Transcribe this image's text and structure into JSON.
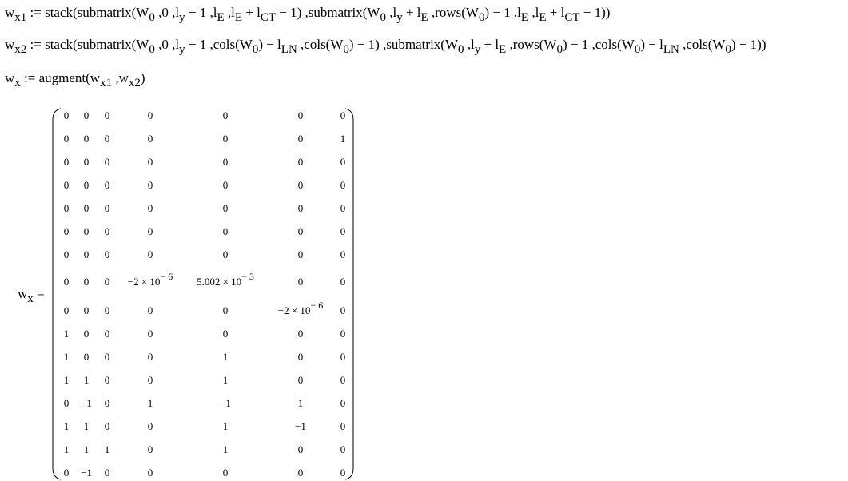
{
  "equations": [
    [
      "w",
      {
        "sub": "x1"
      },
      " := stack(submatrix(W",
      {
        "sub": "0"
      },
      " ,0 ,l",
      {
        "sub": "y"
      },
      " − 1 ,l",
      {
        "sub": "E"
      },
      " ,l",
      {
        "sub": "E"
      },
      " + l",
      {
        "sub": "CT"
      },
      " − 1) ,submatrix(W",
      {
        "sub": "0"
      },
      " ,l",
      {
        "sub": "y"
      },
      " + l",
      {
        "sub": "E"
      },
      " ,rows(W",
      {
        "sub": "0"
      },
      ") − 1 ,l",
      {
        "sub": "E"
      },
      " ,l",
      {
        "sub": "E"
      },
      " + l",
      {
        "sub": "CT"
      },
      " − 1))"
    ],
    [
      "w",
      {
        "sub": "x2"
      },
      " := stack(submatrix(W",
      {
        "sub": "0"
      },
      " ,0 ,l",
      {
        "sub": "y"
      },
      " − 1 ,cols(W",
      {
        "sub": "0"
      },
      ") − l",
      {
        "sub": "LN"
      },
      " ,cols(W",
      {
        "sub": "0"
      },
      ") − 1) ,submatrix(W",
      {
        "sub": "0"
      },
      " ,l",
      {
        "sub": "y"
      },
      " + l",
      {
        "sub": "E"
      },
      " ,rows(W",
      {
        "sub": "0"
      },
      ") − 1 ,cols(W",
      {
        "sub": "0"
      },
      ") − l",
      {
        "sub": "LN"
      },
      " ,cols(W",
      {
        "sub": "0"
      },
      ") − 1))"
    ],
    [
      "w",
      {
        "sub": "x"
      },
      " := augment(w",
      {
        "sub": "x1"
      },
      " ,w",
      {
        "sub": "x2"
      },
      ")"
    ]
  ],
  "matrix_label": [
    "w",
    {
      "sub": "x"
    },
    " ="
  ],
  "matrix": [
    [
      "0",
      "0",
      "0",
      "0",
      "0",
      "0",
      "0"
    ],
    [
      "0",
      "0",
      "0",
      "0",
      "0",
      "0",
      "1"
    ],
    [
      "0",
      "0",
      "0",
      "0",
      "0",
      "0",
      "0"
    ],
    [
      "0",
      "0",
      "0",
      "0",
      "0",
      "0",
      "0"
    ],
    [
      "0",
      "0",
      "0",
      "0",
      "0",
      "0",
      "0"
    ],
    [
      "0",
      "0",
      "0",
      "0",
      "0",
      "0",
      "0"
    ],
    [
      "0",
      "0",
      "0",
      "0",
      "0",
      "0",
      "0"
    ],
    [
      "0",
      "0",
      "0",
      {
        "base": "−2 × 10",
        "sup": "− 6"
      },
      {
        "base": "5.002 × 10",
        "sup": "− 3"
      },
      "0",
      "0"
    ],
    [
      "0",
      "0",
      "0",
      "0",
      "0",
      {
        "base": "−2 × 10",
        "sup": "− 6"
      },
      "0"
    ],
    [
      "1",
      "0",
      "0",
      "0",
      "0",
      "0",
      "0"
    ],
    [
      "1",
      "0",
      "0",
      "0",
      "1",
      "0",
      "0"
    ],
    [
      "1",
      "1",
      "0",
      "0",
      "1",
      "0",
      "0"
    ],
    [
      "0",
      "−1",
      "0",
      "1",
      "−1",
      "1",
      "0"
    ],
    [
      "1",
      "1",
      "0",
      "0",
      "1",
      "−1",
      "0"
    ],
    [
      "1",
      "1",
      "1",
      "0",
      "1",
      "0",
      "0"
    ],
    [
      "0",
      "−1",
      "0",
      "0",
      "0",
      "0",
      "0"
    ]
  ]
}
